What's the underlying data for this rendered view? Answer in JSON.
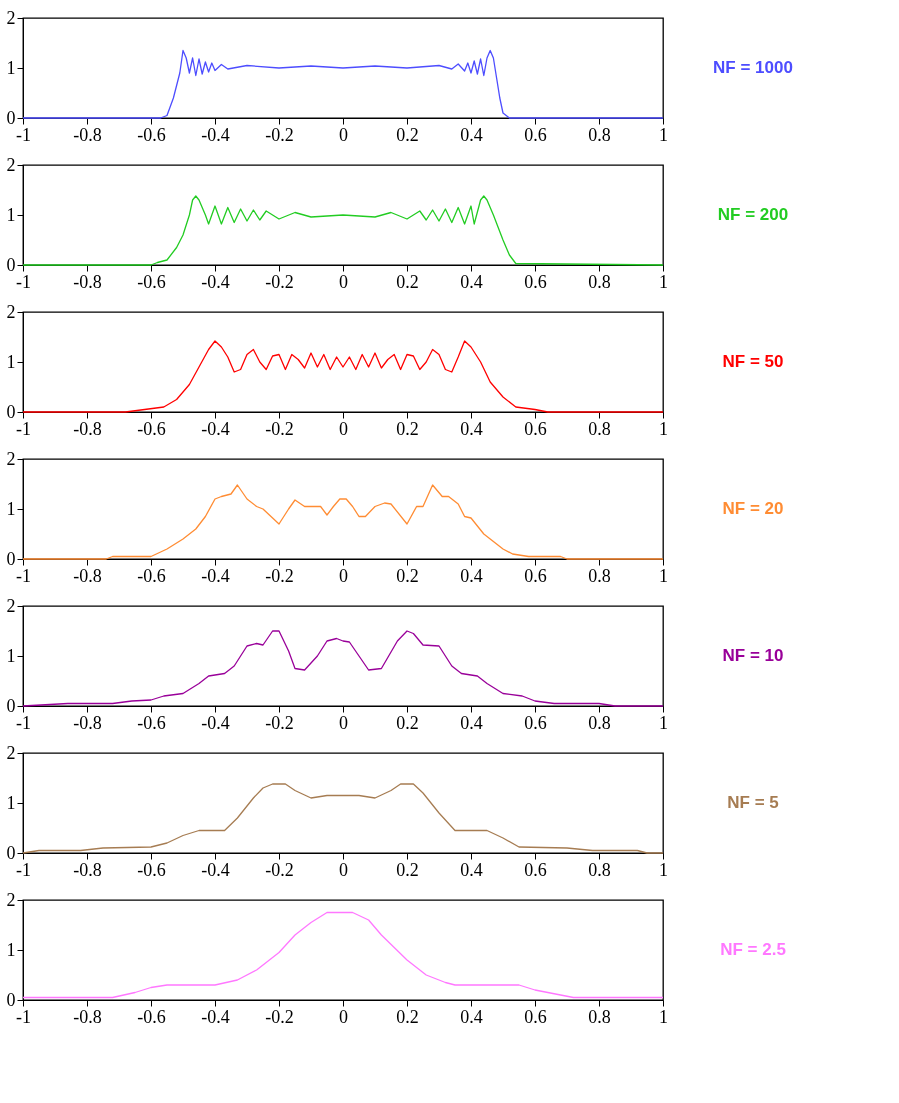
{
  "chart_data": [
    {
      "type": "line",
      "xlim": [
        -1,
        1
      ],
      "ylim": [
        0,
        2
      ],
      "xticks": [
        -1,
        -0.8,
        -0.6,
        -0.4,
        -0.2,
        0,
        0.2,
        0.4,
        0.6,
        0.8,
        1
      ],
      "yticks": [
        0,
        1,
        2
      ],
      "grid": false,
      "legend": false,
      "x": [
        -1,
        -0.57,
        -0.55,
        -0.53,
        -0.51,
        -0.5,
        -0.49,
        -0.48,
        -0.47,
        -0.46,
        -0.45,
        -0.44,
        -0.43,
        -0.42,
        -0.41,
        -0.4,
        -0.38,
        -0.36,
        -0.3,
        -0.2,
        -0.1,
        0,
        0.1,
        0.2,
        0.3,
        0.34,
        0.36,
        0.38,
        0.39,
        0.4,
        0.41,
        0.42,
        0.43,
        0.44,
        0.45,
        0.46,
        0.47,
        0.48,
        0.49,
        0.5,
        0.52,
        1
      ],
      "series": [
        {
          "name": "NF = 1000",
          "color": "#4d4dff",
          "values": [
            0,
            0,
            0.05,
            0.4,
            0.9,
            1.35,
            1.2,
            0.9,
            1.2,
            0.85,
            1.18,
            0.88,
            1.12,
            0.92,
            1.1,
            0.95,
            1.07,
            0.98,
            1.05,
            1.0,
            1.04,
            1.0,
            1.04,
            1.0,
            1.05,
            0.98,
            1.08,
            0.94,
            1.1,
            0.9,
            1.14,
            0.88,
            1.18,
            0.85,
            1.2,
            1.35,
            1.2,
            0.8,
            0.4,
            0.1,
            0,
            0
          ]
        }
      ]
    },
    {
      "type": "line",
      "xlim": [
        -1,
        1
      ],
      "ylim": [
        0,
        2
      ],
      "xticks": [
        -1,
        -0.8,
        -0.6,
        -0.4,
        -0.2,
        0,
        0.2,
        0.4,
        0.6,
        0.8,
        1
      ],
      "yticks": [
        0,
        1,
        2
      ],
      "grid": false,
      "legend": false,
      "x": [
        -1,
        -0.6,
        -0.58,
        -0.55,
        -0.52,
        -0.5,
        -0.48,
        -0.47,
        -0.46,
        -0.45,
        -0.43,
        -0.42,
        -0.4,
        -0.38,
        -0.36,
        -0.34,
        -0.32,
        -0.3,
        -0.28,
        -0.26,
        -0.24,
        -0.2,
        -0.15,
        -0.1,
        0,
        0.1,
        0.15,
        0.2,
        0.24,
        0.26,
        0.28,
        0.3,
        0.32,
        0.34,
        0.36,
        0.38,
        0.4,
        0.41,
        0.43,
        0.44,
        0.45,
        0.47,
        0.5,
        0.52,
        0.54,
        1
      ],
      "series": [
        {
          "name": "NF = 200",
          "color": "#22cc22",
          "values": [
            0,
            0,
            0.05,
            0.1,
            0.35,
            0.6,
            1.0,
            1.3,
            1.38,
            1.3,
            1.0,
            0.82,
            1.18,
            0.82,
            1.15,
            0.85,
            1.12,
            0.88,
            1.1,
            0.9,
            1.08,
            0.92,
            1.05,
            0.96,
            1.0,
            0.96,
            1.05,
            0.92,
            1.08,
            0.9,
            1.1,
            0.88,
            1.12,
            0.85,
            1.15,
            0.82,
            1.18,
            0.82,
            1.3,
            1.38,
            1.3,
            1.0,
            0.5,
            0.2,
            0.03,
            0
          ]
        }
      ]
    },
    {
      "type": "line",
      "xlim": [
        -1,
        1
      ],
      "ylim": [
        0,
        2
      ],
      "xticks": [
        -1,
        -0.8,
        -0.6,
        -0.4,
        -0.2,
        0,
        0.2,
        0.4,
        0.6,
        0.8,
        1
      ],
      "yticks": [
        0,
        1,
        2
      ],
      "grid": false,
      "legend": false,
      "x": [
        -1,
        -0.68,
        -0.62,
        -0.56,
        -0.52,
        -0.48,
        -0.45,
        -0.42,
        -0.4,
        -0.38,
        -0.36,
        -0.34,
        -0.32,
        -0.3,
        -0.28,
        -0.26,
        -0.24,
        -0.22,
        -0.2,
        -0.18,
        -0.16,
        -0.14,
        -0.12,
        -0.1,
        -0.08,
        -0.06,
        -0.04,
        -0.02,
        0,
        0.02,
        0.04,
        0.06,
        0.08,
        0.1,
        0.12,
        0.14,
        0.16,
        0.18,
        0.2,
        0.22,
        0.24,
        0.26,
        0.28,
        0.3,
        0.32,
        0.34,
        0.36,
        0.38,
        0.4,
        0.43,
        0.46,
        0.5,
        0.54,
        0.6,
        0.64,
        1
      ],
      "series": [
        {
          "name": "NF = 50",
          "color": "#ff0000",
          "values": [
            0,
            0,
            0.05,
            0.1,
            0.25,
            0.55,
            0.9,
            1.25,
            1.42,
            1.3,
            1.1,
            0.8,
            0.85,
            1.15,
            1.25,
            1.0,
            0.85,
            1.12,
            1.15,
            0.85,
            1.15,
            1.05,
            0.88,
            1.18,
            0.9,
            1.15,
            0.85,
            1.1,
            0.9,
            1.1,
            0.85,
            1.15,
            0.9,
            1.18,
            0.88,
            1.05,
            1.15,
            0.85,
            1.15,
            1.12,
            0.85,
            1.0,
            1.25,
            1.15,
            0.85,
            0.8,
            1.1,
            1.42,
            1.3,
            1.0,
            0.6,
            0.3,
            0.1,
            0.05,
            0,
            0
          ]
        }
      ]
    },
    {
      "type": "line",
      "xlim": [
        -1,
        1
      ],
      "ylim": [
        0,
        2
      ],
      "xticks": [
        -1,
        -0.8,
        -0.6,
        -0.4,
        -0.2,
        0,
        0.2,
        0.4,
        0.6,
        0.8,
        1
      ],
      "yticks": [
        0,
        1,
        2
      ],
      "grid": false,
      "legend": false,
      "x": [
        -1,
        -0.74,
        -0.72,
        -0.6,
        -0.55,
        -0.5,
        -0.46,
        -0.43,
        -0.4,
        -0.38,
        -0.35,
        -0.33,
        -0.3,
        -0.27,
        -0.25,
        -0.2,
        -0.17,
        -0.15,
        -0.12,
        -0.07,
        -0.05,
        -0.03,
        -0.01,
        0.01,
        0.03,
        0.05,
        0.07,
        0.1,
        0.13,
        0.15,
        0.2,
        0.23,
        0.25,
        0.28,
        0.31,
        0.33,
        0.36,
        0.38,
        0.4,
        0.44,
        0.5,
        0.53,
        0.58,
        0.68,
        0.7,
        1
      ],
      "series": [
        {
          "name": "NF = 20",
          "color": "#ff8c33",
          "values": [
            0,
            0,
            0.05,
            0.05,
            0.2,
            0.4,
            0.6,
            0.85,
            1.2,
            1.25,
            1.3,
            1.48,
            1.2,
            1.05,
            1.0,
            0.7,
            1.0,
            1.18,
            1.05,
            1.05,
            0.88,
            1.05,
            1.2,
            1.2,
            1.05,
            0.85,
            0.85,
            1.05,
            1.12,
            1.1,
            0.7,
            1.05,
            1.05,
            1.48,
            1.25,
            1.25,
            1.1,
            0.85,
            0.82,
            0.5,
            0.2,
            0.1,
            0.05,
            0.05,
            0,
            0
          ]
        }
      ]
    },
    {
      "type": "line",
      "xlim": [
        -1,
        1
      ],
      "ylim": [
        0,
        2
      ],
      "xticks": [
        -1,
        -0.8,
        -0.6,
        -0.4,
        -0.2,
        0,
        0.2,
        0.4,
        0.6,
        0.8,
        1
      ],
      "yticks": [
        0,
        1,
        2
      ],
      "grid": false,
      "legend": false,
      "x": [
        -1,
        -0.86,
        -0.72,
        -0.66,
        -0.6,
        -0.56,
        -0.5,
        -0.45,
        -0.42,
        -0.37,
        -0.34,
        -0.3,
        -0.27,
        -0.25,
        -0.22,
        -0.2,
        -0.17,
        -0.15,
        -0.12,
        -0.08,
        -0.05,
        -0.02,
        0,
        0.02,
        0.05,
        0.08,
        0.12,
        0.17,
        0.2,
        0.22,
        0.25,
        0.3,
        0.34,
        0.37,
        0.42,
        0.45,
        0.5,
        0.56,
        0.6,
        0.66,
        0.8,
        0.85,
        1
      ],
      "series": [
        {
          "name": "NF = 10",
          "color": "#990099",
          "values": [
            0,
            0.05,
            0.05,
            0.1,
            0.12,
            0.2,
            0.25,
            0.45,
            0.6,
            0.65,
            0.8,
            1.2,
            1.25,
            1.22,
            1.5,
            1.5,
            1.1,
            0.75,
            0.72,
            1.0,
            1.3,
            1.35,
            1.3,
            1.28,
            1.0,
            0.72,
            0.75,
            1.3,
            1.5,
            1.45,
            1.22,
            1.2,
            0.8,
            0.65,
            0.6,
            0.45,
            0.25,
            0.2,
            0.1,
            0.05,
            0.05,
            0,
            0
          ]
        }
      ]
    },
    {
      "type": "line",
      "xlim": [
        -1,
        1
      ],
      "ylim": [
        0,
        2
      ],
      "xticks": [
        -1,
        -0.8,
        -0.6,
        -0.4,
        -0.2,
        0,
        0.2,
        0.4,
        0.6,
        0.8,
        1
      ],
      "yticks": [
        0,
        1,
        2
      ],
      "grid": false,
      "legend": false,
      "x": [
        -1,
        -0.95,
        -0.82,
        -0.75,
        -0.6,
        -0.55,
        -0.5,
        -0.45,
        -0.37,
        -0.33,
        -0.28,
        -0.25,
        -0.22,
        -0.18,
        -0.15,
        -0.1,
        -0.05,
        0.05,
        0.1,
        0.15,
        0.18,
        0.22,
        0.25,
        0.3,
        0.35,
        0.45,
        0.5,
        0.55,
        0.7,
        0.78,
        0.92,
        0.95,
        1
      ],
      "series": [
        {
          "name": "NF = 5",
          "color": "#a67c52",
          "values": [
            0,
            0.05,
            0.05,
            0.1,
            0.12,
            0.2,
            0.35,
            0.45,
            0.45,
            0.7,
            1.1,
            1.3,
            1.38,
            1.38,
            1.25,
            1.1,
            1.15,
            1.15,
            1.1,
            1.25,
            1.38,
            1.38,
            1.2,
            0.8,
            0.45,
            0.45,
            0.3,
            0.12,
            0.1,
            0.05,
            0.05,
            0,
            0
          ]
        }
      ]
    },
    {
      "type": "line",
      "xlim": [
        -1,
        1
      ],
      "ylim": [
        0,
        2
      ],
      "xticks": [
        -1,
        -0.8,
        -0.6,
        -0.4,
        -0.2,
        0,
        0.2,
        0.4,
        0.6,
        0.8,
        1
      ],
      "yticks": [
        0,
        1,
        2
      ],
      "grid": false,
      "legend": false,
      "x": [
        -1,
        -0.72,
        -0.65,
        -0.6,
        -0.55,
        -0.4,
        -0.33,
        -0.27,
        -0.2,
        -0.15,
        -0.1,
        -0.05,
        0.03,
        0.08,
        0.12,
        0.2,
        0.26,
        0.32,
        0.35,
        0.55,
        0.6,
        0.68,
        0.72,
        1
      ],
      "series": [
        {
          "name": "NF = 2.5",
          "color": "#ff77ff",
          "values": [
            0.05,
            0.05,
            0.15,
            0.25,
            0.3,
            0.3,
            0.4,
            0.6,
            0.95,
            1.3,
            1.55,
            1.75,
            1.75,
            1.6,
            1.3,
            0.8,
            0.5,
            0.35,
            0.3,
            0.3,
            0.2,
            0.1,
            0.05,
            0.05
          ]
        }
      ]
    }
  ]
}
